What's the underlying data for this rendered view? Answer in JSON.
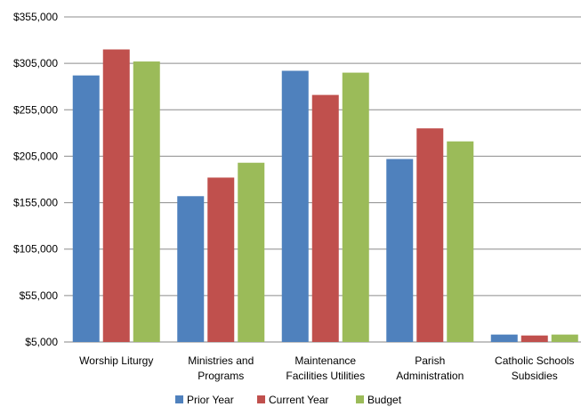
{
  "chart_data": {
    "type": "bar",
    "categories": [
      [
        "Worship Liturgy"
      ],
      [
        "Ministries and",
        "Programs"
      ],
      [
        "Maintenance",
        "Facilities Utilities"
      ],
      [
        "Parish",
        "Administration"
      ],
      [
        "Catholic Schools",
        "Subsidies"
      ]
    ],
    "series": [
      {
        "name": "Prior Year",
        "color": "#4f81bd",
        "values": [
          292000,
          162000,
          297000,
          202000,
          13000
        ]
      },
      {
        "name": "Current Year",
        "color": "#c0504d",
        "values": [
          320000,
          182000,
          271000,
          235000,
          12000
        ]
      },
      {
        "name": "Budget",
        "color": "#9bbb59",
        "values": [
          307000,
          198000,
          295000,
          221000,
          13000
        ]
      }
    ],
    "yticks": [
      "$5,000",
      "$55,000",
      "$105,000",
      "$155,000",
      "$205,000",
      "$255,000",
      "$305,000",
      "$355,000"
    ],
    "ylim": [
      5000,
      355000
    ],
    "grid": true,
    "legend_position": "bottom"
  }
}
